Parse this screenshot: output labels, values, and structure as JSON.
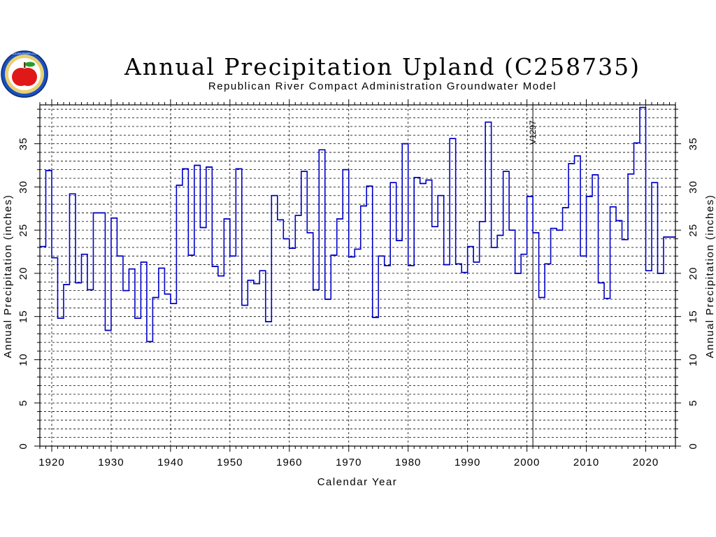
{
  "logo": {
    "emblem": "apple-seal-icon",
    "ring_text": "REPUBLICAN RIVER COMPACT"
  },
  "chart_data": {
    "type": "line",
    "step": true,
    "title": "Annual Precipitation Upland (C258735)",
    "subtitle": "Republican River Compact Administration Groundwater Model",
    "xlabel": "Calendar Year",
    "ylabel": "Annual Precipitation (inches)",
    "ylabel_right": "Annual Precipitation (inches)",
    "xlim": [
      1918,
      2025
    ],
    "ylim": [
      0,
      39.5
    ],
    "x_ticks": [
      1920,
      1930,
      1940,
      1950,
      1960,
      1970,
      1980,
      1990,
      2000,
      2010,
      2020
    ],
    "y_ticks": [
      0,
      5,
      10,
      15,
      20,
      25,
      30,
      35
    ],
    "grid": true,
    "line_color": "#0000c8",
    "annotation": {
      "text": "V1297",
      "x": 2001
    },
    "x": [
      1918,
      1919,
      1920,
      1921,
      1922,
      1923,
      1924,
      1925,
      1926,
      1927,
      1928,
      1929,
      1930,
      1931,
      1932,
      1933,
      1934,
      1935,
      1936,
      1937,
      1938,
      1939,
      1940,
      1941,
      1942,
      1943,
      1944,
      1945,
      1946,
      1947,
      1948,
      1949,
      1950,
      1951,
      1952,
      1953,
      1954,
      1955,
      1956,
      1957,
      1958,
      1959,
      1960,
      1961,
      1962,
      1963,
      1964,
      1965,
      1966,
      1967,
      1968,
      1969,
      1970,
      1971,
      1972,
      1973,
      1974,
      1975,
      1976,
      1977,
      1978,
      1979,
      1980,
      1981,
      1982,
      1983,
      1984,
      1985,
      1986,
      1987,
      1988,
      1989,
      1990,
      1991,
      1992,
      1993,
      1994,
      1995,
      1996,
      1997,
      1998,
      1999,
      2000,
      2001,
      2002,
      2003,
      2004,
      2005,
      2006,
      2007,
      2008,
      2009,
      2010,
      2011,
      2012,
      2013,
      2014,
      2015,
      2016,
      2017,
      2018,
      2019,
      2020,
      2021,
      2022,
      2023,
      2024
    ],
    "values": [
      23.1,
      31.9,
      21.8,
      14.8,
      18.7,
      29.2,
      18.9,
      22.2,
      18.1,
      27.0,
      27.0,
      13.4,
      26.4,
      22.0,
      18.0,
      20.5,
      14.8,
      21.3,
      12.1,
      17.2,
      20.6,
      17.6,
      16.5,
      30.2,
      32.1,
      22.1,
      32.5,
      25.3,
      32.3,
      20.8,
      19.7,
      26.3,
      22.0,
      32.1,
      16.3,
      19.2,
      18.8,
      20.3,
      14.4,
      29.0,
      26.2,
      24.0,
      22.9,
      26.7,
      31.8,
      24.7,
      18.1,
      34.3,
      17.0,
      22.1,
      26.3,
      32.0,
      21.9,
      22.8,
      27.8,
      30.1,
      14.9,
      22.0,
      20.9,
      30.5,
      23.8,
      35.0,
      20.9,
      31.1,
      30.4,
      30.8,
      25.4,
      29.0,
      21.0,
      35.6,
      21.1,
      20.1,
      23.1,
      21.3,
      26.0,
      37.5,
      23.0,
      24.4,
      31.8,
      25.0,
      20.0,
      22.2,
      28.9,
      24.7,
      17.2,
      21.1,
      25.2,
      25.0,
      27.6,
      32.7,
      33.6,
      22.0,
      28.9,
      31.4,
      18.9,
      17.1,
      27.7,
      26.1,
      23.9,
      31.5,
      35.1,
      39.2,
      20.3,
      30.5,
      20.0,
      24.2,
      24.2
    ]
  }
}
